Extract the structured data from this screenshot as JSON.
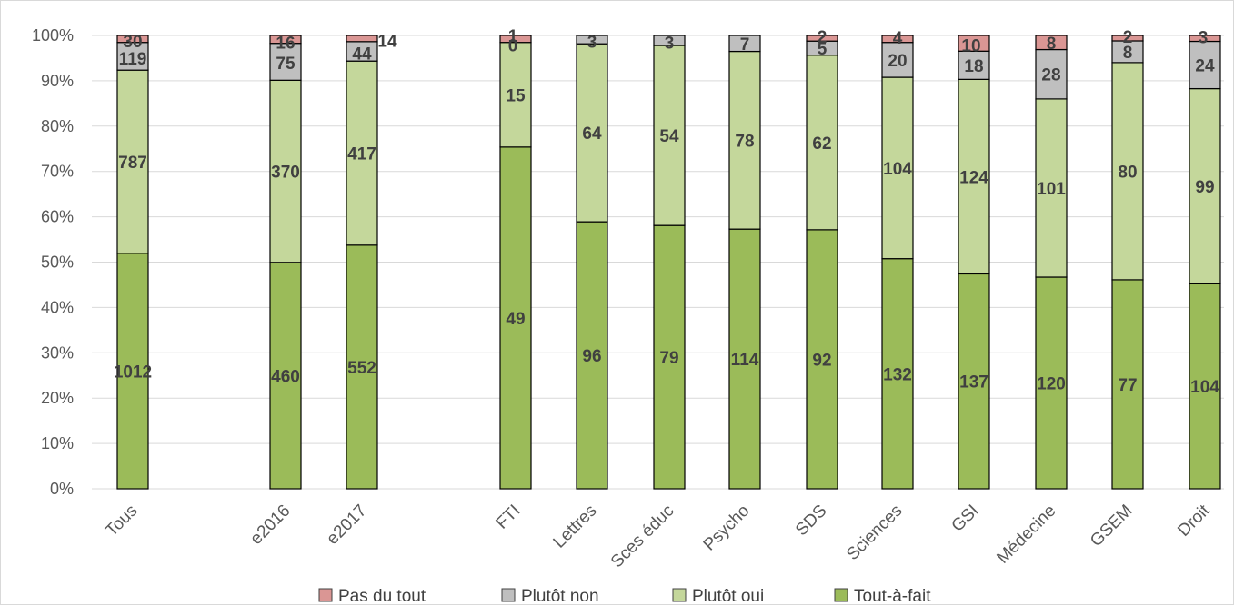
{
  "chart_data": {
    "type": "bar",
    "stacked": "percent",
    "categories": [
      "Tous",
      "e2016",
      "e2017",
      "FTI",
      "Lettres",
      "Sces éduc",
      "Psycho",
      "SDS",
      "Sciences",
      "GSI",
      "Médecine",
      "GSEM",
      "Droit"
    ],
    "series": [
      {
        "name": "Tout-à-fait",
        "color": "#9bbb59",
        "values": [
          1012,
          460,
          552,
          49,
          96,
          79,
          114,
          92,
          132,
          137,
          120,
          77,
          104
        ]
      },
      {
        "name": "Plutôt oui",
        "color": "#c4d79b",
        "values": [
          787,
          370,
          417,
          15,
          64,
          54,
          78,
          62,
          104,
          124,
          101,
          80,
          99
        ]
      },
      {
        "name": "Plutôt non",
        "color": "#bfbfbf",
        "values": [
          119,
          75,
          44,
          0,
          3,
          3,
          7,
          5,
          20,
          18,
          28,
          8,
          24
        ]
      },
      {
        "name": "Pas du tout",
        "color": "#da9694",
        "values": [
          30,
          16,
          14,
          1,
          0,
          0,
          0,
          2,
          4,
          10,
          8,
          2,
          3
        ]
      }
    ],
    "legend_order": [
      "Pas du tout",
      "Plutôt non",
      "Plutôt oui",
      "Tout-à-fait"
    ],
    "legend_position": "bottom",
    "y_ticks": [
      "0%",
      "10%",
      "20%",
      "30%",
      "40%",
      "50%",
      "60%",
      "70%",
      "80%",
      "90%",
      "100%"
    ],
    "ylim": [
      0,
      100
    ],
    "grid": true
  }
}
